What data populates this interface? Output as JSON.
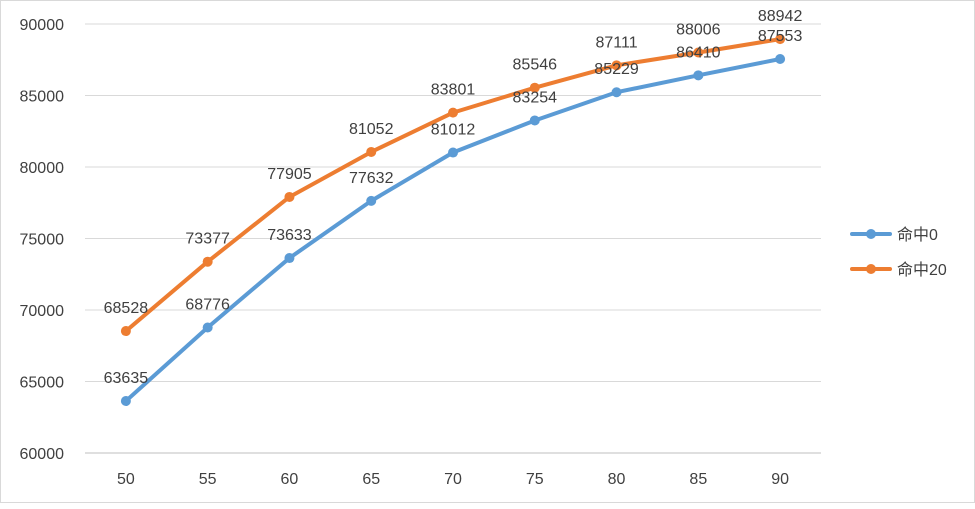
{
  "chart_data": {
    "type": "line",
    "title": "",
    "xlabel": "",
    "ylabel": "",
    "categories": [
      "50",
      "55",
      "60",
      "65",
      "70",
      "75",
      "80",
      "85",
      "90"
    ],
    "ylim": [
      60000,
      90000
    ],
    "yticks": [
      "60000",
      "65000",
      "70000",
      "75000",
      "80000",
      "85000",
      "90000"
    ],
    "grid": true,
    "legend_position": "right",
    "series": [
      {
        "name": "命中0",
        "color": "#5b9bd5",
        "values": [
          63635,
          68776,
          73633,
          77632,
          81012,
          83254,
          85229,
          86410,
          87553
        ],
        "labels": [
          "63635",
          "68776",
          "73633",
          "77632",
          "81012",
          "83254",
          "85229",
          "86410",
          "87553"
        ]
      },
      {
        "name": "命中20",
        "color": "#ed7d31",
        "values": [
          68528,
          73377,
          77905,
          81052,
          83801,
          85546,
          87111,
          88006,
          88942
        ],
        "labels": [
          "68528",
          "73377",
          "77905",
          "81052",
          "83801",
          "85546",
          "87111",
          "88006",
          "88942"
        ]
      }
    ]
  }
}
